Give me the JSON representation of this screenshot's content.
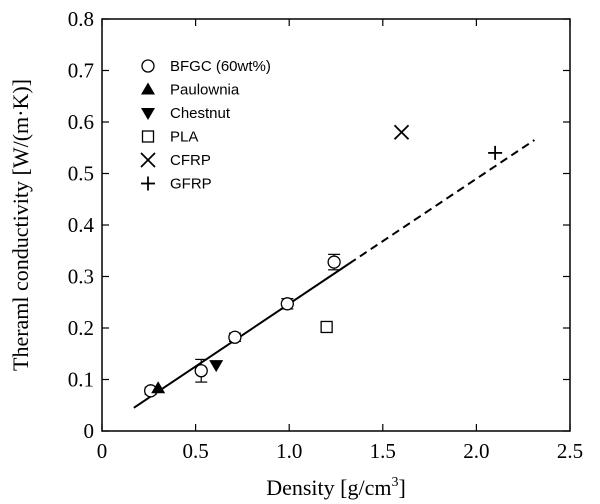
{
  "chart_data": {
    "type": "scatter",
    "xlabel": "Density [g/cm",
    "xlabel_superscript": "3",
    "xlabel_suffix": "]",
    "ylabel": "Theraml conductivity [W/(m·K)]",
    "xlim": [
      0,
      2.5
    ],
    "ylim": [
      0,
      0.8
    ],
    "xticks": [
      0,
      0.5,
      1.0,
      1.5,
      2.0,
      2.5
    ],
    "xtick_labels": [
      "0",
      "0.5",
      "1.0",
      "1.5",
      "2.0",
      "2.5"
    ],
    "yticks": [
      0,
      0.1,
      0.2,
      0.3,
      0.4,
      0.5,
      0.6,
      0.7,
      0.8
    ],
    "ytick_labels": [
      "0",
      "0.1",
      "0.2",
      "0.3",
      "0.4",
      "0.5",
      "0.6",
      "0.7",
      "0.8"
    ],
    "grid": false,
    "legend_position": "top-left",
    "series": [
      {
        "name": "BFGC (60wt%)",
        "marker": "circle-open",
        "points": [
          {
            "x": 0.26,
            "y": 0.078,
            "err": 0.007
          },
          {
            "x": 0.53,
            "y": 0.117,
            "err": 0.022
          },
          {
            "x": 0.71,
            "y": 0.182,
            "err": 0.008
          },
          {
            "x": 0.99,
            "y": 0.247,
            "err": 0.01
          },
          {
            "x": 1.24,
            "y": 0.328,
            "err": 0.015
          }
        ]
      },
      {
        "name": "Paulownia",
        "marker": "triangle-up-filled",
        "points": [
          {
            "x": 0.3,
            "y": 0.083
          }
        ]
      },
      {
        "name": "Chestnut",
        "marker": "triangle-down-filled",
        "points": [
          {
            "x": 0.61,
            "y": 0.128
          }
        ]
      },
      {
        "name": "PLA",
        "marker": "square-open",
        "points": [
          {
            "x": 1.2,
            "y": 0.202
          }
        ]
      },
      {
        "name": "CFRP",
        "marker": "x",
        "points": [
          {
            "x": 1.6,
            "y": 0.58
          }
        ]
      },
      {
        "name": "GFRP",
        "marker": "plus",
        "points": [
          {
            "x": 2.1,
            "y": 0.54
          }
        ]
      }
    ],
    "fit_line": {
      "solid": [
        [
          0.17,
          0.045
        ],
        [
          1.32,
          0.325
        ]
      ],
      "dashed": [
        [
          1.32,
          0.325
        ],
        [
          2.31,
          0.565
        ]
      ]
    }
  }
}
